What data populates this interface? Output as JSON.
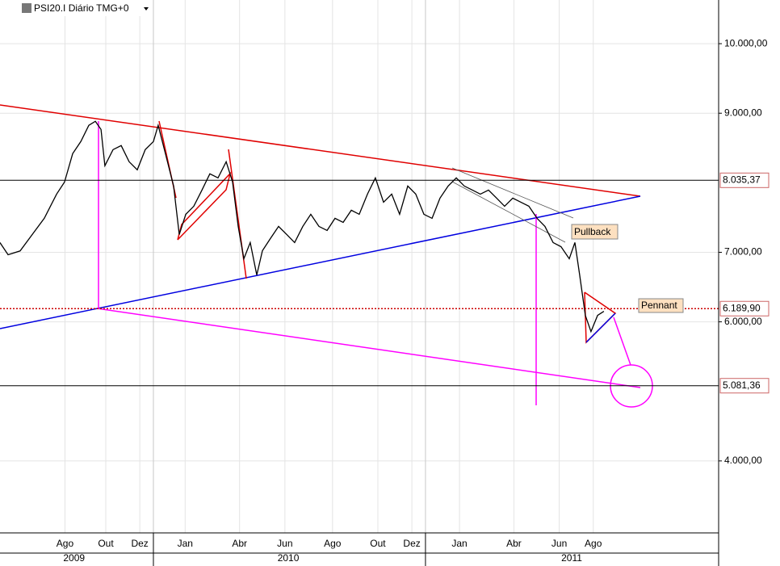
{
  "chart_data": {
    "type": "line",
    "title": "PSI20.I Diário TMG+0",
    "color": "#000000",
    "xlim": [
      -0.766,
      30.93
    ],
    "ylim": [
      2965,
      10628
    ],
    "yticks": [
      {
        "value": 4000,
        "label": "4.000,00"
      },
      {
        "value": 6000,
        "label": "6.000,00"
      },
      {
        "value": 7000,
        "label": "7.000,00"
      },
      {
        "value": 9000,
        "label": "9.000,00"
      },
      {
        "value": 10000,
        "label": "10.000,00"
      }
    ],
    "xticks": [
      {
        "value": 2.1,
        "label": "Ago"
      },
      {
        "value": 3.9,
        "label": "Out"
      },
      {
        "value": 5.4,
        "label": "Dez"
      },
      {
        "value": 7.4,
        "label": "Jan"
      },
      {
        "value": 9.8,
        "label": "Abr"
      },
      {
        "value": 11.8,
        "label": "Jun"
      },
      {
        "value": 13.9,
        "label": "Ago"
      },
      {
        "value": 15.9,
        "label": "Out"
      },
      {
        "value": 17.4,
        "label": "Dez"
      },
      {
        "value": 19.5,
        "label": "Jan"
      },
      {
        "value": 21.9,
        "label": "Abr"
      },
      {
        "value": 23.9,
        "label": "Jun"
      },
      {
        "value": 25.4,
        "label": "Ago"
      }
    ],
    "years": [
      {
        "value": 2.5,
        "label": "2009"
      },
      {
        "value": 11.95,
        "label": "2010"
      },
      {
        "value": 24.45,
        "label": "2011"
      }
    ],
    "year_breaks": [
      6,
      18
    ],
    "x": [
      -0.77,
      -0.41,
      0.12,
      0.66,
      1.19,
      1.73,
      2.08,
      2.44,
      2.8,
      3.15,
      3.44,
      3.69,
      3.86,
      4.22,
      4.58,
      4.93,
      5.29,
      5.64,
      6.0,
      6.21,
      6.53,
      6.89,
      7.14,
      7.43,
      7.78,
      8.14,
      8.49,
      8.85,
      9.21,
      9.49,
      9.74,
      9.99,
      10.27,
      10.56,
      10.81,
      11.16,
      11.52,
      11.88,
      12.23,
      12.59,
      12.94,
      13.3,
      13.66,
      14.01,
      14.37,
      14.73,
      15.08,
      15.44,
      15.79,
      16.15,
      16.51,
      16.86,
      17.22,
      17.57,
      17.93,
      18.29,
      18.64,
      19.0,
      19.36,
      19.71,
      20.07,
      20.42,
      20.78,
      21.14,
      21.49,
      21.85,
      22.21,
      22.56,
      22.92,
      23.27,
      23.63,
      23.98,
      24.34,
      24.59,
      24.8,
      25.05,
      25.3,
      25.59,
      25.87
    ],
    "values": [
      7140,
      6965,
      7020,
      7256,
      7490,
      7837,
      8010,
      8419,
      8593,
      8826,
      8884,
      8767,
      8244,
      8477,
      8535,
      8302,
      8186,
      8477,
      8593,
      8826,
      8419,
      7953,
      7256,
      7547,
      7663,
      7895,
      8128,
      8070,
      8302,
      8012,
      7372,
      6907,
      7140,
      6674,
      7023,
      7198,
      7372,
      7256,
      7140,
      7372,
      7547,
      7372,
      7314,
      7488,
      7430,
      7605,
      7547,
      7837,
      8070,
      7721,
      7837,
      7547,
      7953,
      7837,
      7547,
      7488,
      7779,
      7953,
      8070,
      7953,
      7895,
      7837,
      7895,
      7779,
      7663,
      7779,
      7721,
      7663,
      7488,
      7372,
      7140,
      7081,
      6907,
      7140,
      6674,
      6093,
      5860,
      6093,
      6151
    ],
    "levels": [
      {
        "value": 8035.37,
        "label": "8.035,37",
        "color": "#000000",
        "text_color": "#cc0000",
        "style": "solid"
      },
      {
        "value": 6189.9,
        "label": "6.189,90",
        "color": "#cc0000",
        "text_color": "#000000",
        "style": "dotted"
      },
      {
        "value": 5081.36,
        "label": "5.081,36",
        "color": "#000000",
        "text_color": "#cc0000",
        "style": "solid"
      }
    ],
    "annotations": [
      "Pullback",
      "Pennant"
    ]
  }
}
